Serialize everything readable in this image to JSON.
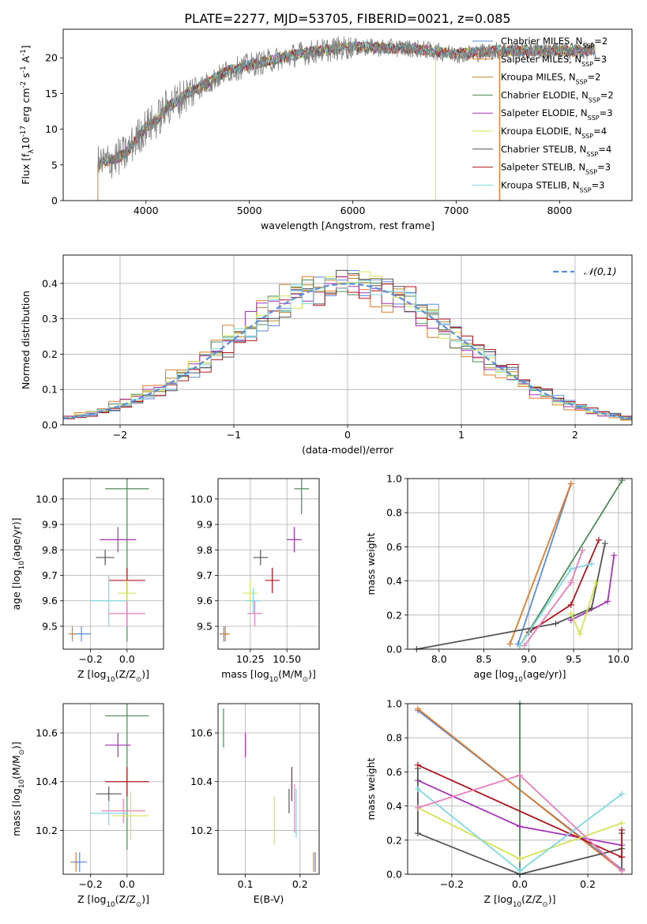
{
  "figure_title": "PLATE=2277, MJD=53705, FIBERID=0021, z=0.085",
  "colors": {
    "Chabrier MILES": "#5b8bdc",
    "Salpeter MILES": "#e07b2c",
    "Kroupa MILES": "#b58a2a",
    "Chabrier ELODIE": "#4f8a5a",
    "Salpeter ELODIE": "#a633b8",
    "Kroupa ELODIE": "#d4e356",
    "Chabrier STELIB": "#555555",
    "Salpeter STELIB": "#b0161e",
    "Kroupa STELIB": "#7fd8e0",
    "pink": "#e87fbc",
    "data": "#808080",
    "normal_curve": "#5b8bdc"
  },
  "chart_data": [
    {
      "id": "spectrum",
      "type": "line",
      "xlabel": "wavelength [Angstrom, rest frame]",
      "ylabel": "Flux [f$_\\lambda$10$^{-17}$ erg cm$^{-2}$ s$^{-1}$ A$^{-1}$]",
      "xlim": [
        3200,
        8700
      ],
      "ylim": [
        0,
        24
      ],
      "xticks": [
        4000,
        5000,
        6000,
        7000,
        8000
      ],
      "yticks": [
        0,
        5,
        10,
        15,
        20
      ],
      "grid": false,
      "legend_position": "upper-right",
      "legend": [
        {
          "name": "Chabrier MILES, N$_{SSP}$=2",
          "color": "#5b8bdc"
        },
        {
          "name": "Salpeter MILES, N$_{SSP}$=3",
          "color": "#e07b2c"
        },
        {
          "name": "Kroupa MILES, N$_{SSP}$=2",
          "color": "#b58a2a"
        },
        {
          "name": "Chabrier ELODIE, N$_{SSP}$=2",
          "color": "#4f8a5a"
        },
        {
          "name": "Salpeter ELODIE, N$_{SSP}$=3",
          "color": "#a633b8"
        },
        {
          "name": "Kroupa ELODIE, N$_{SSP}$=4",
          "color": "#d4e356"
        },
        {
          "name": "Chabrier STELIB, N$_{SSP}$=4",
          "color": "#555555"
        },
        {
          "name": "Salpeter STELIB, N$_{SSP}$=3",
          "color": "#b0161e"
        },
        {
          "name": "Kroupa STELIB, N$_{SSP}$=3",
          "color": "#7fd8e0"
        }
      ],
      "continuum_x": [
        3530,
        3650,
        3800,
        3900,
        4000,
        4100,
        4200,
        4400,
        4600,
        4800,
        5000,
        5200,
        5500,
        5800,
        6000,
        6300,
        6600,
        7000,
        7200,
        7400
      ],
      "continuum_y": [
        5.0,
        5.6,
        6.5,
        8.5,
        10.3,
        11.2,
        13.0,
        15.0,
        16.5,
        18.2,
        19.0,
        19.6,
        20.6,
        21.2,
        21.5,
        21.4,
        21.3,
        20.5,
        20.7,
        21.0
      ]
    },
    {
      "id": "residual-histogram",
      "type": "line",
      "xlabel": "(data-model)/error",
      "ylabel": "Normed distribution",
      "xlim": [
        -2.5,
        2.5
      ],
      "ylim": [
        0,
        0.48
      ],
      "xticks": [
        -2,
        -1,
        0,
        1,
        2
      ],
      "yticks": [
        0.0,
        0.1,
        0.2,
        0.3,
        0.4
      ],
      "grid": true,
      "legend_position": "upper-right",
      "legend": [
        {
          "name": "$\\mathcal{N}(0,1)$",
          "color": "#5b8bdc"
        }
      ],
      "bin_width": 0.1
    },
    {
      "id": "age-vs-Z",
      "type": "scatter",
      "xlabel": "Z [log$_{10}$(Z/Z$_\\odot$)]",
      "ylabel": "age  [log$_{10}$(age/yr)]",
      "xlim": [
        -0.35,
        0.2
      ],
      "ylim": [
        9.41,
        10.08
      ],
      "xticks": [
        -0.2,
        0.0
      ],
      "yticks": [
        9.5,
        9.6,
        9.7,
        9.8,
        9.9,
        10.0
      ],
      "grid": true,
      "points": [
        {
          "color": "#4f8a5a",
          "x": 0.0,
          "xerr": 0.12,
          "y": 10.04,
          "yerr": 0.6
        },
        {
          "color": "#a633b8",
          "x": -0.05,
          "xerr": 0.1,
          "y": 9.84,
          "yerr": 0.05
        },
        {
          "color": "#555555",
          "x": -0.12,
          "xerr": 0.05,
          "y": 9.77,
          "yerr": 0.03
        },
        {
          "color": "#b0161e",
          "x": 0.0,
          "xerr": 0.1,
          "y": 9.68,
          "yerr": 0.05
        },
        {
          "color": "#d4e356",
          "x": 0.0,
          "xerr": 0.05,
          "y": 9.63,
          "yerr": 0.05
        },
        {
          "color": "#7fd8e0",
          "x": -0.1,
          "xerr": 0.1,
          "y": 9.6,
          "yerr": 0.1
        },
        {
          "color": "#e87fbc",
          "x": 0.0,
          "xerr": 0.1,
          "y": 9.55,
          "yerr": 0.05
        },
        {
          "color": "#5b8bdc",
          "x": -0.25,
          "xerr": 0.05,
          "y": 9.47,
          "yerr": 0.03
        },
        {
          "color": "#e07b2c",
          "x": -0.3,
          "xerr": 0.02,
          "y": 9.47,
          "yerr": 0.03
        }
      ]
    },
    {
      "id": "age-vs-mass",
      "type": "scatter",
      "xlabel": "mass [log$_{10}$(M/M$_\\odot$)]",
      "ylabel": "",
      "xlim": [
        10.03,
        10.72
      ],
      "ylim": [
        9.41,
        10.08
      ],
      "xticks": [
        10.25,
        10.5
      ],
      "yticks": [
        9.5,
        9.6,
        9.7,
        9.8,
        9.9,
        10.0
      ],
      "grid": true,
      "points": [
        {
          "color": "#4f8a5a",
          "x": 10.6,
          "xerr": 0.05,
          "y": 10.04,
          "yerr": 0.1
        },
        {
          "color": "#a633b8",
          "x": 10.55,
          "xerr": 0.05,
          "y": 9.84,
          "yerr": 0.05
        },
        {
          "color": "#555555",
          "x": 10.32,
          "xerr": 0.05,
          "y": 9.77,
          "yerr": 0.03
        },
        {
          "color": "#b0161e",
          "x": 10.4,
          "xerr": 0.05,
          "y": 9.68,
          "yerr": 0.05
        },
        {
          "color": "#d4e356",
          "x": 10.25,
          "xerr": 0.05,
          "y": 9.63,
          "yerr": 0.05
        },
        {
          "color": "#7fd8e0",
          "x": 10.27,
          "xerr": 0.05,
          "y": 9.6,
          "yerr": 0.05
        },
        {
          "color": "#e87fbc",
          "x": 10.28,
          "xerr": 0.05,
          "y": 9.55,
          "yerr": 0.05
        },
        {
          "color": "#5b8bdc",
          "x": 10.07,
          "xerr": 0.03,
          "y": 9.47,
          "yerr": 0.03
        },
        {
          "color": "#e07b2c",
          "x": 10.08,
          "xerr": 0.03,
          "y": 9.47,
          "yerr": 0.03
        }
      ]
    },
    {
      "id": "mass-weight-vs-age",
      "type": "line",
      "xlabel": "age  [log$_{10}$(age/yr)]",
      "ylabel": "mass weight",
      "xlim": [
        7.65,
        10.15
      ],
      "ylim": [
        0,
        1
      ],
      "xticks": [
        8.0,
        8.5,
        9.0,
        9.5,
        10.0
      ],
      "yticks": [
        0.0,
        0.2,
        0.4,
        0.6,
        0.8,
        1.0
      ],
      "grid": true,
      "series": [
        {
          "color": "#5b8bdc",
          "x": [
            8.88,
            9.47
          ],
          "y": [
            0.03,
            0.97
          ]
        },
        {
          "color": "#e07b2c",
          "x": [
            8.79,
            9.47
          ],
          "y": [
            0.03,
            0.97
          ]
        },
        {
          "color": "#4f8a5a",
          "x": [
            8.9,
            10.04
          ],
          "y": [
            0.02,
            0.99
          ]
        },
        {
          "color": "#a633b8",
          "x": [
            9.47,
            9.88,
            9.95
          ],
          "y": [
            0.17,
            0.28,
            0.55
          ]
        },
        {
          "color": "#555555",
          "x": [
            7.75,
            9.3,
            9.7,
            9.85
          ],
          "y": [
            0.0,
            0.15,
            0.24,
            0.62
          ]
        },
        {
          "color": "#b0161e",
          "x": [
            9.0,
            9.47,
            9.78
          ],
          "y": [
            0.1,
            0.26,
            0.64
          ]
        },
        {
          "color": "#d4e356",
          "x": [
            9.47,
            9.57,
            9.75
          ],
          "y": [
            0.21,
            0.09,
            0.39
          ]
        },
        {
          "color": "#7fd8e0",
          "x": [
            8.9,
            9.47,
            9.7
          ],
          "y": [
            0.02,
            0.47,
            0.5
          ]
        },
        {
          "color": "#e87fbc",
          "x": [
            8.95,
            9.47,
            9.6
          ],
          "y": [
            0.02,
            0.39,
            0.58
          ]
        }
      ]
    },
    {
      "id": "mass-vs-Z",
      "type": "scatter",
      "xlabel": "Z [log$_{10}$(Z/Z$_\\odot$)]",
      "ylabel": "mass [log$_{10}$(M/M$_\\odot$)]",
      "xlim": [
        -0.35,
        0.2
      ],
      "ylim": [
        10.02,
        10.72
      ],
      "xticks": [
        -0.2,
        0.0
      ],
      "yticks": [
        10.2,
        10.4,
        10.6
      ],
      "grid": true,
      "points": [
        {
          "color": "#4f8a5a",
          "x": 0.0,
          "xerr": 0.12,
          "y": 10.67,
          "yerr": 0.55
        },
        {
          "color": "#a633b8",
          "x": -0.05,
          "xerr": 0.07,
          "y": 10.55,
          "yerr": 0.05
        },
        {
          "color": "#b0161e",
          "x": 0.0,
          "xerr": 0.12,
          "y": 10.4,
          "yerr": 0.06
        },
        {
          "color": "#555555",
          "x": -0.1,
          "xerr": 0.07,
          "y": 10.35,
          "yerr": 0.03
        },
        {
          "color": "#e87fbc",
          "x": -0.02,
          "xerr": 0.12,
          "y": 10.28,
          "yerr": 0.05
        },
        {
          "color": "#7fd8e0",
          "x": -0.1,
          "xerr": 0.1,
          "y": 10.27,
          "yerr": 0.05
        },
        {
          "color": "#d4e356",
          "x": 0.02,
          "xerr": 0.1,
          "y": 10.26,
          "yerr": 0.1
        },
        {
          "color": "#e07b2c",
          "x": -0.28,
          "xerr": 0.03,
          "y": 10.07,
          "yerr": 0.04
        },
        {
          "color": "#5b8bdc",
          "x": -0.26,
          "xerr": 0.04,
          "y": 10.07,
          "yerr": 0.04
        }
      ]
    },
    {
      "id": "mass-vs-EBV",
      "type": "scatter",
      "xlabel": "E(B-V)",
      "ylabel": "",
      "xlim": [
        0.05,
        0.235
      ],
      "ylim": [
        10.02,
        10.72
      ],
      "xticks": [
        0.1,
        0.2
      ],
      "yticks": [
        10.2,
        10.4,
        10.6
      ],
      "grid": true,
      "points": [
        {
          "color": "#4f8a5a",
          "x": 0.06,
          "xerr": 0,
          "y": 10.62,
          "yerr": 0.08
        },
        {
          "color": "#a633b8",
          "x": 0.1,
          "xerr": 0,
          "y": 10.55,
          "yerr": 0.05
        },
        {
          "color": "#d4e356",
          "x": 0.153,
          "xerr": 0,
          "y": 10.24,
          "yerr": 0.1
        },
        {
          "color": "#555555",
          "x": 0.18,
          "xerr": 0,
          "y": 10.32,
          "yerr": 0.05
        },
        {
          "color": "#b0161e",
          "x": 0.185,
          "xerr": 0,
          "y": 10.39,
          "yerr": 0.07
        },
        {
          "color": "#e87fbc",
          "x": 0.19,
          "xerr": 0,
          "y": 10.29,
          "yerr": 0.1
        },
        {
          "color": "#7fd8e0",
          "x": 0.193,
          "xerr": 0,
          "y": 10.27,
          "yerr": 0.1
        },
        {
          "color": "#e07b2c",
          "x": 0.225,
          "xerr": 0,
          "y": 10.07,
          "yerr": 0.04
        },
        {
          "color": "#5b8bdc",
          "x": 0.228,
          "xerr": 0,
          "y": 10.07,
          "yerr": 0.04
        }
      ]
    },
    {
      "id": "mass-weight-vs-Z",
      "type": "line",
      "xlabel": "Z [log$_{10}$(Z/Z$_\\odot$)]",
      "ylabel": "mass weight",
      "xlim": [
        -0.33,
        0.33
      ],
      "ylim": [
        0,
        1
      ],
      "xticks": [
        -0.2,
        0.0,
        0.2
      ],
      "yticks": [
        0.0,
        0.2,
        0.4,
        0.6,
        0.8,
        1.0
      ],
      "grid": true,
      "series": [
        {
          "color": "#5b8bdc",
          "x": [
            -0.3,
            0.3
          ],
          "y": [
            0.96,
            0.03
          ]
        },
        {
          "color": "#e07b2c",
          "x": [
            -0.3,
            0.3
          ],
          "y": [
            0.97,
            0.02
          ]
        },
        {
          "color": "#4f8a5a",
          "x": [
            0.0,
            0.0
          ],
          "y": [
            0.0,
            1.0
          ]
        },
        {
          "color": "#a633b8",
          "x": [
            -0.3,
            0.0,
            0.3
          ],
          "y": [
            0.55,
            0.28,
            0.17
          ]
        },
        {
          "color": "#555555",
          "x": [
            -0.3,
            -0.3,
            0.0,
            0.3,
            0.3,
            0.3
          ],
          "y": [
            0.62,
            0.24,
            0.0,
            0.15,
            0.24,
            0.03
          ]
        },
        {
          "color": "#b0161e",
          "x": [
            -0.3,
            0.3,
            0.3,
            0.3
          ],
          "y": [
            0.64,
            0.1,
            0.26,
            0.1
          ]
        },
        {
          "color": "#d4e356",
          "x": [
            -0.3,
            0.0,
            0.3
          ],
          "y": [
            0.39,
            0.09,
            0.3
          ]
        },
        {
          "color": "#7fd8e0",
          "x": [
            -0.3,
            0.0,
            0.3
          ],
          "y": [
            0.5,
            0.02,
            0.47
          ]
        },
        {
          "color": "#e87fbc",
          "x": [
            -0.3,
            0.0,
            0.3
          ],
          "y": [
            0.39,
            0.58,
            0.02
          ]
        }
      ]
    }
  ]
}
